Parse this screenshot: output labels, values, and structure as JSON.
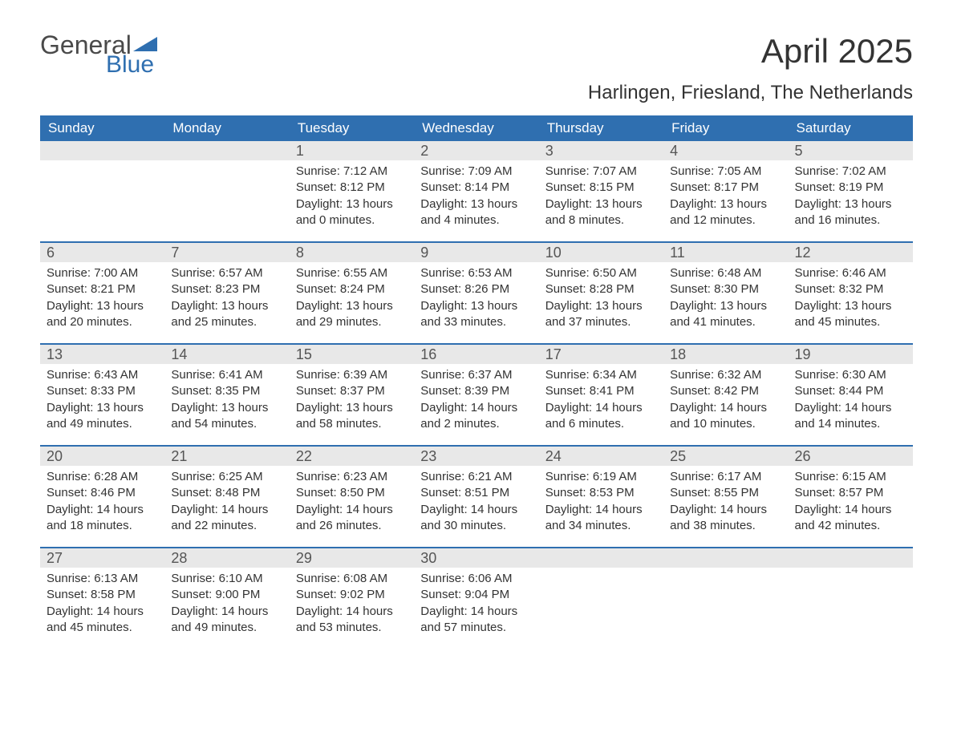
{
  "brand": {
    "general": "General",
    "blue": "Blue"
  },
  "title": "April 2025",
  "location": "Harlingen, Friesland, The Netherlands",
  "colors": {
    "header_bg": "#2f6fb0",
    "header_text": "#ffffff",
    "daynum_bg": "#e8e8e8",
    "week_border": "#2f6fb0",
    "body_text": "#333333"
  },
  "typography": {
    "title_fontsize": 42,
    "subtitle_fontsize": 24,
    "dow_fontsize": 17,
    "daynum_fontsize": 18,
    "body_fontsize": 15
  },
  "days_of_week": [
    "Sunday",
    "Monday",
    "Tuesday",
    "Wednesday",
    "Thursday",
    "Friday",
    "Saturday"
  ],
  "weeks": [
    [
      {
        "num": "",
        "lines": []
      },
      {
        "num": "",
        "lines": []
      },
      {
        "num": "1",
        "lines": [
          "Sunrise: 7:12 AM",
          "Sunset: 8:12 PM",
          "Daylight: 13 hours",
          "and 0 minutes."
        ]
      },
      {
        "num": "2",
        "lines": [
          "Sunrise: 7:09 AM",
          "Sunset: 8:14 PM",
          "Daylight: 13 hours",
          "and 4 minutes."
        ]
      },
      {
        "num": "3",
        "lines": [
          "Sunrise: 7:07 AM",
          "Sunset: 8:15 PM",
          "Daylight: 13 hours",
          "and 8 minutes."
        ]
      },
      {
        "num": "4",
        "lines": [
          "Sunrise: 7:05 AM",
          "Sunset: 8:17 PM",
          "Daylight: 13 hours",
          "and 12 minutes."
        ]
      },
      {
        "num": "5",
        "lines": [
          "Sunrise: 7:02 AM",
          "Sunset: 8:19 PM",
          "Daylight: 13 hours",
          "and 16 minutes."
        ]
      }
    ],
    [
      {
        "num": "6",
        "lines": [
          "Sunrise: 7:00 AM",
          "Sunset: 8:21 PM",
          "Daylight: 13 hours",
          "and 20 minutes."
        ]
      },
      {
        "num": "7",
        "lines": [
          "Sunrise: 6:57 AM",
          "Sunset: 8:23 PM",
          "Daylight: 13 hours",
          "and 25 minutes."
        ]
      },
      {
        "num": "8",
        "lines": [
          "Sunrise: 6:55 AM",
          "Sunset: 8:24 PM",
          "Daylight: 13 hours",
          "and 29 minutes."
        ]
      },
      {
        "num": "9",
        "lines": [
          "Sunrise: 6:53 AM",
          "Sunset: 8:26 PM",
          "Daylight: 13 hours",
          "and 33 minutes."
        ]
      },
      {
        "num": "10",
        "lines": [
          "Sunrise: 6:50 AM",
          "Sunset: 8:28 PM",
          "Daylight: 13 hours",
          "and 37 minutes."
        ]
      },
      {
        "num": "11",
        "lines": [
          "Sunrise: 6:48 AM",
          "Sunset: 8:30 PM",
          "Daylight: 13 hours",
          "and 41 minutes."
        ]
      },
      {
        "num": "12",
        "lines": [
          "Sunrise: 6:46 AM",
          "Sunset: 8:32 PM",
          "Daylight: 13 hours",
          "and 45 minutes."
        ]
      }
    ],
    [
      {
        "num": "13",
        "lines": [
          "Sunrise: 6:43 AM",
          "Sunset: 8:33 PM",
          "Daylight: 13 hours",
          "and 49 minutes."
        ]
      },
      {
        "num": "14",
        "lines": [
          "Sunrise: 6:41 AM",
          "Sunset: 8:35 PM",
          "Daylight: 13 hours",
          "and 54 minutes."
        ]
      },
      {
        "num": "15",
        "lines": [
          "Sunrise: 6:39 AM",
          "Sunset: 8:37 PM",
          "Daylight: 13 hours",
          "and 58 minutes."
        ]
      },
      {
        "num": "16",
        "lines": [
          "Sunrise: 6:37 AM",
          "Sunset: 8:39 PM",
          "Daylight: 14 hours",
          "and 2 minutes."
        ]
      },
      {
        "num": "17",
        "lines": [
          "Sunrise: 6:34 AM",
          "Sunset: 8:41 PM",
          "Daylight: 14 hours",
          "and 6 minutes."
        ]
      },
      {
        "num": "18",
        "lines": [
          "Sunrise: 6:32 AM",
          "Sunset: 8:42 PM",
          "Daylight: 14 hours",
          "and 10 minutes."
        ]
      },
      {
        "num": "19",
        "lines": [
          "Sunrise: 6:30 AM",
          "Sunset: 8:44 PM",
          "Daylight: 14 hours",
          "and 14 minutes."
        ]
      }
    ],
    [
      {
        "num": "20",
        "lines": [
          "Sunrise: 6:28 AM",
          "Sunset: 8:46 PM",
          "Daylight: 14 hours",
          "and 18 minutes."
        ]
      },
      {
        "num": "21",
        "lines": [
          "Sunrise: 6:25 AM",
          "Sunset: 8:48 PM",
          "Daylight: 14 hours",
          "and 22 minutes."
        ]
      },
      {
        "num": "22",
        "lines": [
          "Sunrise: 6:23 AM",
          "Sunset: 8:50 PM",
          "Daylight: 14 hours",
          "and 26 minutes."
        ]
      },
      {
        "num": "23",
        "lines": [
          "Sunrise: 6:21 AM",
          "Sunset: 8:51 PM",
          "Daylight: 14 hours",
          "and 30 minutes."
        ]
      },
      {
        "num": "24",
        "lines": [
          "Sunrise: 6:19 AM",
          "Sunset: 8:53 PM",
          "Daylight: 14 hours",
          "and 34 minutes."
        ]
      },
      {
        "num": "25",
        "lines": [
          "Sunrise: 6:17 AM",
          "Sunset: 8:55 PM",
          "Daylight: 14 hours",
          "and 38 minutes."
        ]
      },
      {
        "num": "26",
        "lines": [
          "Sunrise: 6:15 AM",
          "Sunset: 8:57 PM",
          "Daylight: 14 hours",
          "and 42 minutes."
        ]
      }
    ],
    [
      {
        "num": "27",
        "lines": [
          "Sunrise: 6:13 AM",
          "Sunset: 8:58 PM",
          "Daylight: 14 hours",
          "and 45 minutes."
        ]
      },
      {
        "num": "28",
        "lines": [
          "Sunrise: 6:10 AM",
          "Sunset: 9:00 PM",
          "Daylight: 14 hours",
          "and 49 minutes."
        ]
      },
      {
        "num": "29",
        "lines": [
          "Sunrise: 6:08 AM",
          "Sunset: 9:02 PM",
          "Daylight: 14 hours",
          "and 53 minutes."
        ]
      },
      {
        "num": "30",
        "lines": [
          "Sunrise: 6:06 AM",
          "Sunset: 9:04 PM",
          "Daylight: 14 hours",
          "and 57 minutes."
        ]
      },
      {
        "num": "",
        "lines": []
      },
      {
        "num": "",
        "lines": []
      },
      {
        "num": "",
        "lines": []
      }
    ]
  ]
}
